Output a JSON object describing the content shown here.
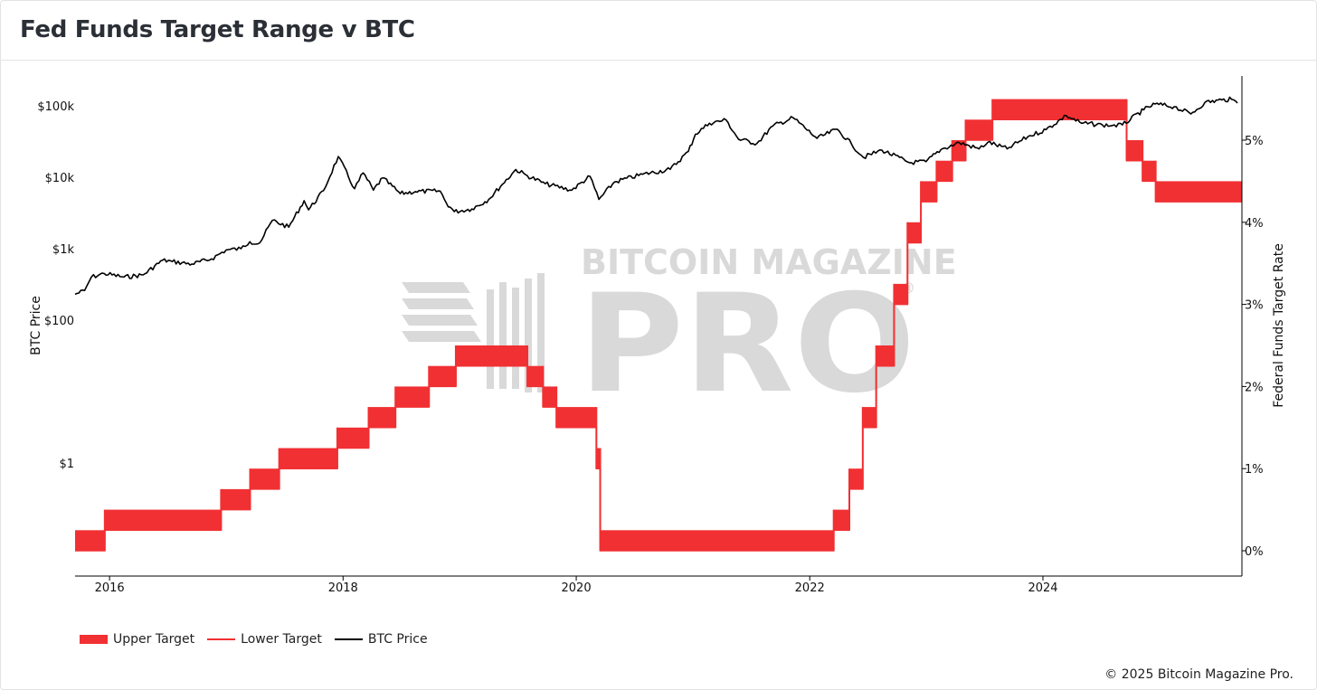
{
  "title": "Fed Funds Target Range v BTC",
  "watermark": {
    "line1": "BITCOIN MAGAZINE",
    "line2": "PRO",
    "mark": "®"
  },
  "legend": [
    {
      "label": "Upper Target",
      "style": "band"
    },
    {
      "label": "Lower Target",
      "style": "line-red"
    },
    {
      "label": "BTC Price",
      "style": "line-black"
    }
  ],
  "copyright": "© 2025 Bitcoin Magazine Pro.",
  "colors": {
    "fed_band": "#f13033",
    "btc_line": "#000000",
    "watermark": "#d9d9d9"
  },
  "chart_data": {
    "type": "line",
    "title": "Fed Funds Target Range v BTC",
    "xlabel": "",
    "ylabel_left": "BTC Price",
    "ylabel_right": "Federal Funds Target Rate",
    "x_ticks": [
      "2016",
      "2018",
      "2020",
      "2022",
      "2024"
    ],
    "x_range": [
      "2015-09-15",
      "2025-09-15"
    ],
    "y_left_scale": "log",
    "y_left_ticks": [
      "$1",
      "$100",
      "$1k",
      "$10k",
      "$100k"
    ],
    "y_left_tick_values": [
      1,
      100,
      1000,
      10000,
      100000
    ],
    "y_right_ticks": [
      "0%",
      "1%",
      "2%",
      "3%",
      "4%",
      "5%"
    ],
    "y_right_tick_values": [
      0,
      1,
      2,
      3,
      4,
      5
    ],
    "y_right_range": [
      -0.3,
      5.6
    ],
    "grid": false,
    "legend_position": "bottom-left",
    "series": [
      {
        "name": "Upper Target",
        "type": "step",
        "points": [
          [
            "2015-09-15",
            0.25
          ],
          [
            "2015-12-17",
            0.5
          ],
          [
            "2016-12-15",
            0.75
          ],
          [
            "2017-03-16",
            1.0
          ],
          [
            "2017-06-15",
            1.25
          ],
          [
            "2017-12-14",
            1.5
          ],
          [
            "2018-03-22",
            1.75
          ],
          [
            "2018-06-14",
            2.0
          ],
          [
            "2018-09-27",
            2.25
          ],
          [
            "2018-12-20",
            2.5
          ],
          [
            "2019-08-01",
            2.25
          ],
          [
            "2019-09-19",
            2.0
          ],
          [
            "2019-10-31",
            1.75
          ],
          [
            "2020-03-04",
            1.25
          ],
          [
            "2020-03-16",
            0.25
          ],
          [
            "2022-03-17",
            0.5
          ],
          [
            "2022-05-05",
            1.0
          ],
          [
            "2022-06-16",
            1.75
          ],
          [
            "2022-07-28",
            2.5
          ],
          [
            "2022-09-22",
            3.25
          ],
          [
            "2022-11-03",
            4.0
          ],
          [
            "2022-12-15",
            4.5
          ],
          [
            "2023-02-02",
            4.75
          ],
          [
            "2023-03-23",
            5.0
          ],
          [
            "2023-05-04",
            5.25
          ],
          [
            "2023-07-27",
            5.5
          ],
          [
            "2024-09-19",
            5.0
          ],
          [
            "2024-11-08",
            4.75
          ],
          [
            "2024-12-19",
            4.5
          ],
          [
            "2025-09-15",
            4.5
          ]
        ]
      },
      {
        "name": "Lower Target",
        "type": "step",
        "points": [
          [
            "2015-09-15",
            0.0
          ],
          [
            "2015-12-17",
            0.25
          ],
          [
            "2016-12-15",
            0.5
          ],
          [
            "2017-03-16",
            0.75
          ],
          [
            "2017-06-15",
            1.0
          ],
          [
            "2017-12-14",
            1.25
          ],
          [
            "2018-03-22",
            1.5
          ],
          [
            "2018-06-14",
            1.75
          ],
          [
            "2018-09-27",
            2.0
          ],
          [
            "2018-12-20",
            2.25
          ],
          [
            "2019-08-01",
            2.0
          ],
          [
            "2019-09-19",
            1.75
          ],
          [
            "2019-10-31",
            1.5
          ],
          [
            "2020-03-04",
            1.0
          ],
          [
            "2020-03-16",
            0.0
          ],
          [
            "2022-03-17",
            0.25
          ],
          [
            "2022-05-05",
            0.75
          ],
          [
            "2022-06-16",
            1.5
          ],
          [
            "2022-07-28",
            2.25
          ],
          [
            "2022-09-22",
            3.0
          ],
          [
            "2022-11-03",
            3.75
          ],
          [
            "2022-12-15",
            4.25
          ],
          [
            "2023-02-02",
            4.5
          ],
          [
            "2023-03-23",
            4.75
          ],
          [
            "2023-05-04",
            5.0
          ],
          [
            "2023-07-27",
            5.25
          ],
          [
            "2024-09-19",
            4.75
          ],
          [
            "2024-11-08",
            4.5
          ],
          [
            "2024-12-19",
            4.25
          ],
          [
            "2025-09-15",
            4.25
          ]
        ]
      },
      {
        "name": "BTC Price",
        "type": "line",
        "points": [
          [
            "2015-09-15",
            230
          ],
          [
            "2015-10-15",
            260
          ],
          [
            "2015-11-05",
            400
          ],
          [
            "2015-12-15",
            450
          ],
          [
            "2016-02-15",
            400
          ],
          [
            "2016-04-15",
            430
          ],
          [
            "2016-06-15",
            690
          ],
          [
            "2016-07-15",
            660
          ],
          [
            "2016-09-15",
            610
          ],
          [
            "2016-11-15",
            720
          ],
          [
            "2016-12-31",
            960
          ],
          [
            "2017-02-15",
            1000
          ],
          [
            "2017-03-15",
            1250
          ],
          [
            "2017-04-15",
            1200
          ],
          [
            "2017-05-25",
            2500
          ],
          [
            "2017-07-15",
            2000
          ],
          [
            "2017-09-01",
            4700
          ],
          [
            "2017-09-15",
            3500
          ],
          [
            "2017-11-01",
            6500
          ],
          [
            "2017-12-17",
            19500
          ],
          [
            "2018-02-06",
            6900
          ],
          [
            "2018-03-05",
            11500
          ],
          [
            "2018-04-06",
            6600
          ],
          [
            "2018-05-05",
            9800
          ],
          [
            "2018-06-29",
            5900
          ],
          [
            "2018-08-15",
            6300
          ],
          [
            "2018-11-01",
            6400
          ],
          [
            "2018-11-20",
            4400
          ],
          [
            "2018-12-15",
            3300
          ],
          [
            "2019-02-08",
            3600
          ],
          [
            "2019-04-02",
            4900
          ],
          [
            "2019-05-15",
            8000
          ],
          [
            "2019-06-26",
            12800
          ],
          [
            "2019-08-01",
            10500
          ],
          [
            "2019-09-26",
            8100
          ],
          [
            "2019-12-18",
            6600
          ],
          [
            "2020-02-13",
            10300
          ],
          [
            "2020-03-12",
            4900
          ],
          [
            "2020-04-30",
            8600
          ],
          [
            "2020-07-27",
            11000
          ],
          [
            "2020-10-21",
            12900
          ],
          [
            "2020-12-17",
            23000
          ],
          [
            "2021-01-08",
            40000
          ],
          [
            "2021-02-21",
            57000
          ],
          [
            "2021-04-14",
            63500
          ],
          [
            "2021-05-23",
            34000
          ],
          [
            "2021-07-20",
            29800
          ],
          [
            "2021-09-07",
            52000
          ],
          [
            "2021-11-10",
            68000
          ],
          [
            "2022-01-24",
            35000
          ],
          [
            "2022-03-28",
            47000
          ],
          [
            "2022-05-12",
            29000
          ],
          [
            "2022-06-18",
            19000
          ],
          [
            "2022-08-15",
            24000
          ],
          [
            "2022-11-09",
            16000
          ],
          [
            "2022-12-31",
            16500
          ],
          [
            "2023-02-16",
            24500
          ],
          [
            "2023-04-14",
            30500
          ],
          [
            "2023-06-15",
            25000
          ],
          [
            "2023-07-13",
            31000
          ],
          [
            "2023-09-11",
            25000
          ],
          [
            "2023-11-15",
            37000
          ],
          [
            "2024-01-11",
            46500
          ],
          [
            "2024-03-14",
            73000
          ],
          [
            "2024-05-01",
            57000
          ],
          [
            "2024-07-05",
            54000
          ],
          [
            "2024-08-05",
            53000
          ],
          [
            "2024-09-06",
            54000
          ],
          [
            "2024-11-12",
            88000
          ],
          [
            "2024-12-17",
            106000
          ],
          [
            "2025-02-15",
            97000
          ],
          [
            "2025-04-08",
            77000
          ],
          [
            "2025-05-22",
            111000
          ],
          [
            "2025-07-14",
            121000
          ],
          [
            "2025-08-14",
            123000
          ],
          [
            "2025-09-01",
            109000
          ]
        ]
      }
    ]
  }
}
